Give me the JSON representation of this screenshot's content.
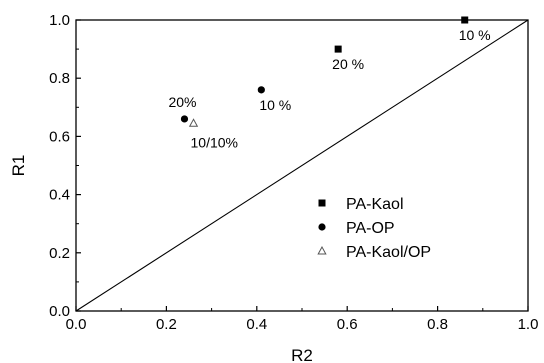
{
  "chart_data": {
    "type": "scatter",
    "xlabel": "R2",
    "ylabel": "R1",
    "xlim": [
      0.0,
      1.0
    ],
    "ylim": [
      0.0,
      1.0
    ],
    "xticks": [
      "0.0",
      "0.2",
      "0.4",
      "0.6",
      "0.8",
      "1.0"
    ],
    "yticks": [
      "0.0",
      "0.2",
      "0.4",
      "0.6",
      "0.8",
      "1.0"
    ],
    "grid": false,
    "legend_position": "bottom-right",
    "reference_line": {
      "from": [
        0,
        0
      ],
      "to": [
        1,
        1
      ]
    },
    "series": [
      {
        "name": "PA-Kaol",
        "marker": "square",
        "points": [
          {
            "x": 0.58,
            "y": 0.9,
            "label": "20 %"
          },
          {
            "x": 0.86,
            "y": 1.0,
            "label": "10 %"
          }
        ]
      },
      {
        "name": "PA-OP",
        "marker": "circle",
        "points": [
          {
            "x": 0.24,
            "y": 0.66,
            "label": "20%"
          },
          {
            "x": 0.41,
            "y": 0.76,
            "label": "10 %"
          }
        ]
      },
      {
        "name": "PA-Kaol/OP",
        "marker": "triangle-open",
        "points": [
          {
            "x": 0.26,
            "y": 0.645,
            "label": "10/10%"
          }
        ]
      }
    ]
  }
}
